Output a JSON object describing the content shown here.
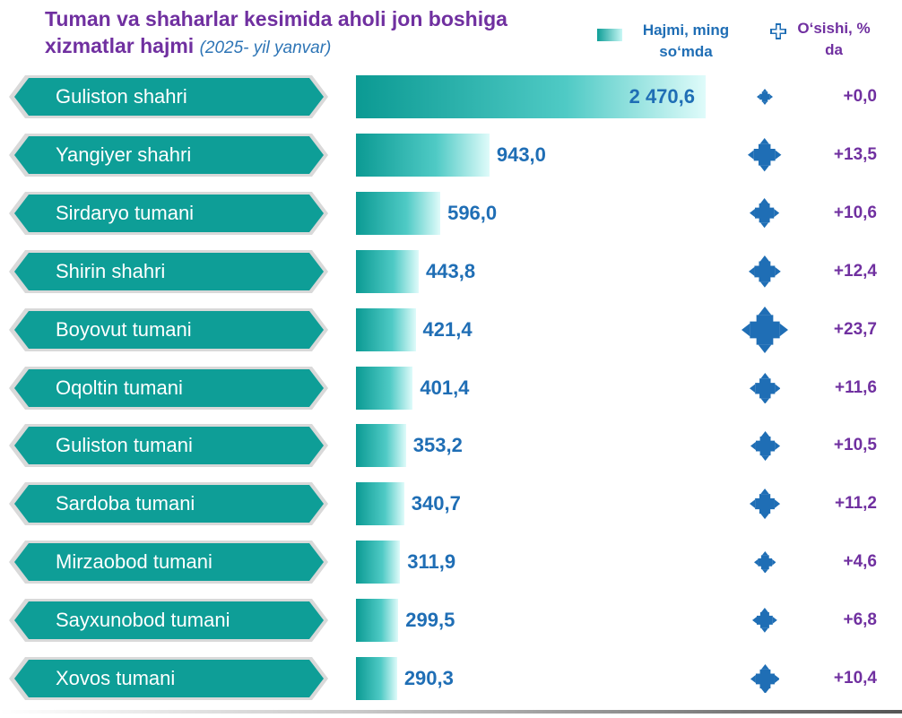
{
  "title_main": "Tuman va shaharlar kesimida aholi jon boshiga xizmatlar hajmi",
  "title_sub": "(2025- yil yanvar)",
  "legend": {
    "volume_label": "Hajmi, ming so‘mda",
    "growth_label": "O‘sishi, % da"
  },
  "colors": {
    "label_fill": "#0e9e97",
    "bar_start": "#0b9a93",
    "bar_end": "#dffbfa",
    "value_text": "#1f6eb5",
    "growth_text": "#7030a0",
    "icon": "#1f6eb5"
  },
  "chart_data": {
    "type": "bar",
    "orientation": "horizontal",
    "title": "Tuman va shaharlar kesimida aholi jon boshiga xizmatlar hajmi (2025- yil yanvar)",
    "categories": [
      "Guliston shahri",
      "Yangiyer shahri",
      "Sirdaryo tumani",
      "Shirin shahri",
      "Boyovut tumani",
      "Oqoltin tumani",
      "Guliston tumani",
      "Sardoba tumani",
      "Mirzaobod tumani",
      "Sayxunobod tumani",
      "Xovos tumani"
    ],
    "values": [
      2470.6,
      943.0,
      596.0,
      443.8,
      421.4,
      401.4,
      353.2,
      340.7,
      311.9,
      299.5,
      290.3
    ],
    "value_labels": [
      "2 470,6",
      "943,0",
      "596,0",
      "443,8",
      "421,4",
      "401,4",
      "353,2",
      "340,7",
      "311,9",
      "299,5",
      "290,3"
    ],
    "growth": [
      0.0,
      13.5,
      10.6,
      12.4,
      23.7,
      11.6,
      10.5,
      11.2,
      4.6,
      6.8,
      10.4
    ],
    "growth_labels": [
      "+0,0",
      "+13,5",
      "+10,6",
      "+12,4",
      "+23,7",
      "+11,6",
      "+10,5",
      "+11,2",
      "+4,6",
      "+6,8",
      "+10,4"
    ],
    "growth_icon": "plus-arrows-icon",
    "legend_placement": "top-right",
    "grid": false
  }
}
